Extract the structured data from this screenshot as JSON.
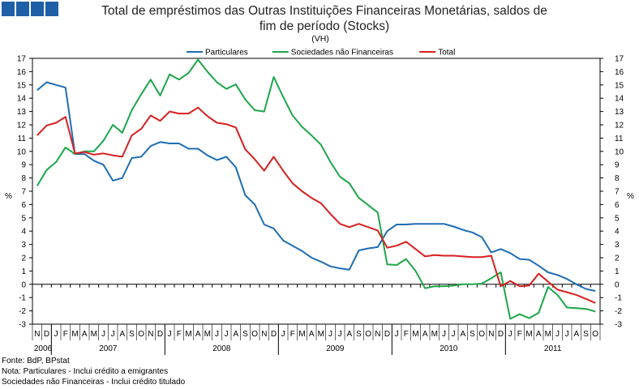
{
  "header": {
    "title_line1": "Total de empréstimos das Outras Instituições Financeiras Monetárias, saldos de",
    "title_line2": "fim de período (Stocks)"
  },
  "logo": {
    "name": "bpstat-logo",
    "color": "#1f5fa8"
  },
  "notes": {
    "source": "Fonte: BdP, BPstat",
    "note1": "Nota: Particulares - Inclui crédito a emigrantes",
    "note2": "Sociedades não Financeiras - Inclui crédito titulado"
  },
  "chart_data": {
    "type": "line",
    "title": "Total de empréstimos das Outras Instituições Financeiras Monetárias, saldos de fim de período (Stocks)",
    "subtitle": "(VH)",
    "ylabel_left": "%",
    "ylabel_right": "%",
    "ylim": [
      -3,
      17
    ],
    "yticks": [
      -3,
      -2,
      -1,
      0,
      1,
      2,
      3,
      4,
      5,
      6,
      7,
      8,
      9,
      10,
      11,
      12,
      13,
      14,
      15,
      16,
      17
    ],
    "legend_position": "top-center",
    "month_labels": [
      "N",
      "D",
      "J",
      "F",
      "M",
      "A",
      "M",
      "J",
      "J",
      "A",
      "S",
      "O",
      "N",
      "D",
      "J",
      "F",
      "M",
      "A",
      "M",
      "J",
      "J",
      "A",
      "S",
      "O",
      "N",
      "D",
      "J",
      "F",
      "M",
      "A",
      "M",
      "J",
      "J",
      "A",
      "S",
      "O",
      "N",
      "D",
      "J",
      "F",
      "M",
      "A",
      "M",
      "J",
      "J",
      "A",
      "S",
      "O",
      "N",
      "D",
      "J",
      "F",
      "M",
      "A",
      "M",
      "J",
      "J",
      "A",
      "S",
      "O"
    ],
    "year_labels": [
      "2006",
      "2007",
      "2008",
      "2009",
      "2010",
      "2011"
    ],
    "year_start_index": [
      0,
      2,
      14,
      26,
      38,
      50
    ],
    "series": [
      {
        "name": "Particulares",
        "color": "#1f6db3",
        "values": [
          14.6,
          15.2,
          15.0,
          14.8,
          9.8,
          9.8,
          9.3,
          9.0,
          7.8,
          8.0,
          9.5,
          9.6,
          10.4,
          10.7,
          10.6,
          10.6,
          10.2,
          10.2,
          9.7,
          9.35,
          9.6,
          8.8,
          6.7,
          6.0,
          4.5,
          4.2,
          3.3,
          2.9,
          2.5,
          2.0,
          1.7,
          1.35,
          1.2,
          1.1,
          2.55,
          2.7,
          2.8,
          4.0,
          4.5,
          4.5,
          4.55,
          4.55,
          4.55,
          4.55,
          4.35,
          4.1,
          3.9,
          3.55,
          2.4,
          2.65,
          2.35,
          1.9,
          1.85,
          1.4,
          0.9,
          0.7,
          0.4,
          0.0,
          -0.35,
          -0.5
        ]
      },
      {
        "name": "Sociedades não Financeiras",
        "color": "#1ea64a",
        "values": [
          7.4,
          8.6,
          9.2,
          10.3,
          9.8,
          10.0,
          10.0,
          10.8,
          12.0,
          11.4,
          13.1,
          14.3,
          15.4,
          14.2,
          15.8,
          15.4,
          15.9,
          16.9,
          16.0,
          15.2,
          14.7,
          15.05,
          13.9,
          13.1,
          13.0,
          15.6,
          14.1,
          12.7,
          11.85,
          11.2,
          10.5,
          9.2,
          8.1,
          7.6,
          6.5,
          5.95,
          5.4,
          1.5,
          1.45,
          1.9,
          1.0,
          -0.3,
          -0.15,
          -0.15,
          -0.1,
          0.0,
          0.0,
          0.05,
          0.45,
          0.9,
          -2.6,
          -2.25,
          -2.55,
          -2.15,
          -0.2,
          -0.8,
          -1.75,
          -1.8,
          -1.85,
          -2.05
        ]
      },
      {
        "name": "Total",
        "color": "#d62020",
        "values": [
          11.2,
          11.95,
          12.15,
          12.6,
          9.85,
          9.95,
          9.75,
          9.85,
          9.7,
          9.6,
          11.2,
          11.7,
          12.7,
          12.3,
          13.0,
          12.85,
          12.85,
          13.3,
          12.65,
          12.15,
          12.05,
          11.8,
          10.15,
          9.4,
          8.55,
          9.6,
          8.55,
          7.6,
          7.0,
          6.5,
          6.1,
          5.3,
          4.55,
          4.3,
          4.55,
          4.3,
          4.05,
          2.75,
          2.9,
          3.2,
          2.65,
          2.1,
          2.2,
          2.15,
          2.15,
          2.1,
          2.05,
          2.05,
          2.15,
          -0.15,
          0.25,
          -0.15,
          -0.1,
          0.8,
          0.2,
          -0.4,
          -0.6,
          -0.8,
          -1.1,
          -1.4
        ]
      }
    ]
  }
}
